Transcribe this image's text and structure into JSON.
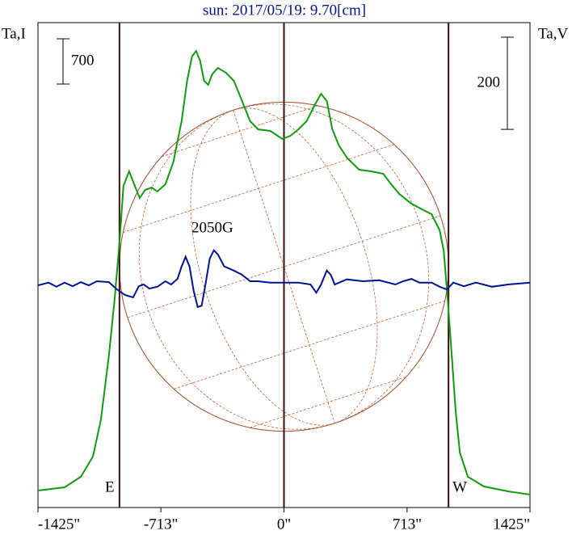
{
  "chart_data": {
    "type": "line",
    "title": "sun: 2017/05/19: 9.70[cm]",
    "y_label": "Ta,I",
    "y2_label": "Ta,V",
    "annotation": "2050G",
    "xlim": [
      -1425,
      1425
    ],
    "xticks": [
      {
        "value": -1425,
        "label": "-1425\""
      },
      {
        "value": -713,
        "label": "-713\""
      },
      {
        "value": 0,
        "label": "0\""
      },
      {
        "value": 713,
        "label": "713\""
      },
      {
        "value": 1425,
        "label": "1425\""
      }
    ],
    "ylim": [
      0,
      7500
    ],
    "y2lim": [
      -484,
      568
    ],
    "limbs": [
      {
        "label": "E",
        "x": -953
      },
      {
        "label": "W",
        "x": 953
      }
    ],
    "scale_bars": [
      {
        "value": 700,
        "axis": "y"
      },
      {
        "value": 200,
        "axis": "y2"
      }
    ],
    "series": [
      {
        "name": "Ta,I",
        "color": "#119911",
        "x": [
          -1425,
          -1271,
          -1177,
          -1107,
          -1061,
          -1014,
          -981,
          -953,
          -930,
          -897,
          -864,
          -836,
          -804,
          -766,
          -734,
          -687,
          -640,
          -593,
          -561,
          -533,
          -509,
          -486,
          -463,
          -439,
          -416,
          -383,
          -336,
          -290,
          -243,
          -196,
          -150,
          -79,
          -9,
          37,
          84,
          131,
          178,
          215,
          248,
          280,
          318,
          364,
          435,
          505,
          575,
          621,
          668,
          738,
          808,
          855,
          902,
          925,
          948,
          972,
          995,
          1019,
          1065,
          1159,
          1299,
          1425
        ],
        "values": [
          262,
          312,
          475,
          788,
          1350,
          2350,
          3225,
          4100,
          4975,
          5200,
          4975,
          4788,
          4912,
          4950,
          4888,
          5000,
          5350,
          5975,
          6600,
          6975,
          7062,
          6912,
          6600,
          6538,
          6700,
          6800,
          6725,
          6600,
          6288,
          5975,
          5850,
          5825,
          5700,
          5750,
          5850,
          5975,
          6225,
          6400,
          6288,
          5850,
          5600,
          5412,
          5225,
          5200,
          5162,
          5000,
          4850,
          4700,
          4600,
          4538,
          4288,
          3975,
          3225,
          2350,
          1475,
          850,
          475,
          325,
          250,
          200
        ]
      },
      {
        "name": "Ta,V",
        "color": "#00148c",
        "axis": "y2",
        "x": [
          -1425,
          -1364,
          -1318,
          -1271,
          -1224,
          -1177,
          -1131,
          -1084,
          -1014,
          -967,
          -920,
          -874,
          -841,
          -813,
          -780,
          -734,
          -687,
          -654,
          -617,
          -593,
          -570,
          -547,
          -523,
          -500,
          -477,
          -453,
          -430,
          -406,
          -383,
          -346,
          -290,
          -243,
          -196,
          -150,
          -79,
          -9,
          84,
          154,
          187,
          215,
          248,
          271,
          294,
          364,
          458,
          551,
          645,
          691,
          738,
          785,
          855,
          902,
          944,
          981,
          1042,
          1112,
          1205,
          1299,
          1425
        ],
        "values": [
          -2,
          4,
          -5,
          4,
          -4,
          5,
          -2,
          7,
          5,
          -11,
          -23,
          -28,
          -4,
          0,
          -9,
          -5,
          7,
          0,
          12,
          39,
          60,
          39,
          -14,
          -49,
          -46,
          4,
          56,
          74,
          65,
          39,
          30,
          21,
          7,
          7,
          4,
          4,
          4,
          0,
          -18,
          0,
          30,
          21,
          0,
          11,
          7,
          9,
          0,
          7,
          12,
          4,
          4,
          -5,
          -11,
          4,
          -4,
          4,
          -5,
          0,
          4
        ]
      }
    ]
  }
}
